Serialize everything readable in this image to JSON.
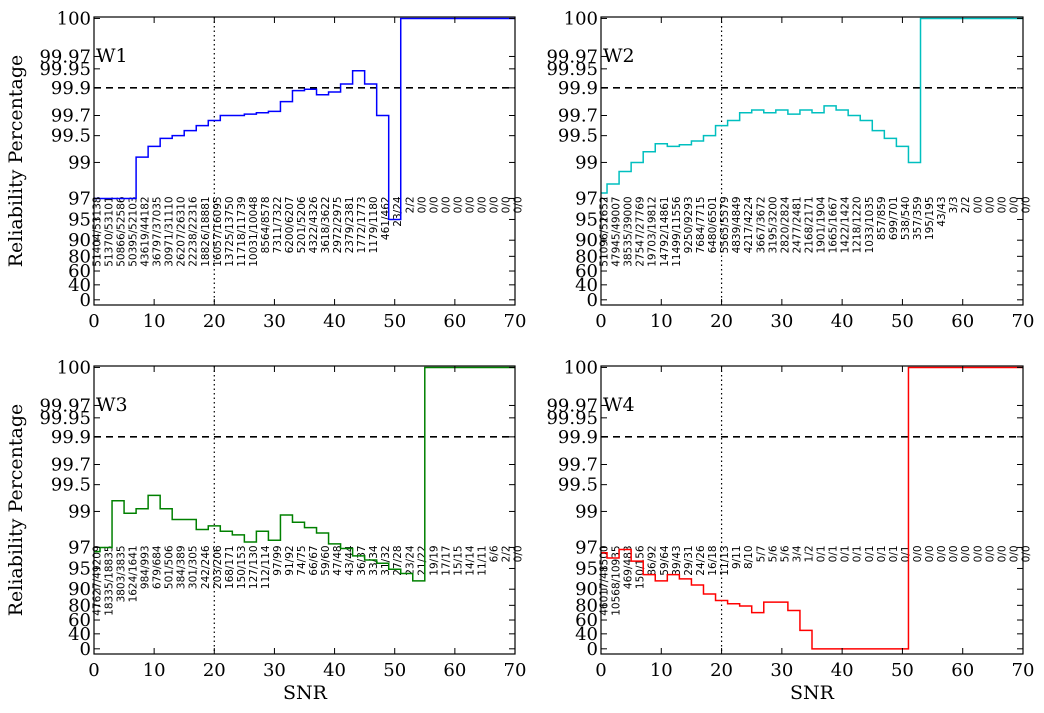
{
  "figure": {
    "ylabel": "Reliability Percentage",
    "xlabel": "SNR"
  },
  "chart_data": [
    {
      "type": "line",
      "panel": "W1",
      "color": "#0000ff",
      "xlabel": "",
      "ylabel": "Reliability Percentage",
      "xlim": [
        0,
        70
      ],
      "xticks": [
        0,
        10,
        20,
        30,
        40,
        50,
        60,
        70
      ],
      "yticks": [
        "0",
        "40",
        "60",
        "80",
        "90",
        "95",
        "97",
        "99",
        "99.5",
        "99.7",
        "99.9",
        "99.95",
        "99.97",
        "100"
      ],
      "reference_hline": 99.9,
      "reference_vline": 20,
      "x": [
        0,
        1,
        2,
        3,
        4,
        5,
        6,
        7,
        8,
        9,
        10,
        11,
        12,
        13,
        14,
        15,
        16,
        17,
        18,
        19,
        20,
        21,
        22,
        23,
        24,
        25,
        26,
        27,
        28,
        29,
        30,
        31,
        32,
        33,
        34,
        35,
        36,
        37,
        38,
        39,
        40,
        41,
        42,
        43,
        44,
        45,
        46,
        47,
        48,
        49,
        50,
        51,
        52,
        53,
        54,
        55,
        56,
        57,
        58,
        59,
        60,
        61,
        62,
        63,
        64,
        65,
        66,
        67,
        68,
        69,
        70
      ],
      "values": [
        97.0,
        97.0,
        97.0,
        97.0,
        97.0,
        97.0,
        97.0,
        99.1,
        99.1,
        99.3,
        99.3,
        99.45,
        99.45,
        99.5,
        99.5,
        99.55,
        99.55,
        99.6,
        99.6,
        99.65,
        99.65,
        99.7,
        99.7,
        99.7,
        99.7,
        99.71,
        99.71,
        99.72,
        99.72,
        99.73,
        99.73,
        99.8,
        99.8,
        99.88,
        99.88,
        99.89,
        99.89,
        99.85,
        99.85,
        99.87,
        99.87,
        99.91,
        99.91,
        99.945,
        99.945,
        99.91,
        99.91,
        99.7,
        99.7,
        95.0,
        95.0,
        100,
        100,
        100,
        100,
        100,
        100,
        100,
        100,
        100,
        100,
        100,
        100,
        100,
        100,
        100,
        100,
        100,
        100,
        100,
        100
      ],
      "ratio_labels": [
        "51404/53138",
        "51370/53101",
        "50866/52586",
        "50395/52103",
        "43619/44182",
        "36797/37035",
        "30971/31110",
        "26207/26310",
        "22238/22316",
        "18826/18881",
        "16057/16095",
        "13725/13750",
        "11718/11739",
        "10031/10048",
        "8564/8578",
        "7311/7322",
        "6200/6207",
        "5201/5206",
        "4322/4326",
        "3618/3622",
        "2972/2975",
        "2379/2381",
        "1772/1773",
        "1179/1180",
        "461/462",
        "23/24",
        "2/2",
        "0/0",
        "0/0",
        "0/0",
        "0/0",
        "0/0",
        "0/0",
        "0/0",
        "0/0",
        "0/0"
      ]
    },
    {
      "type": "line",
      "panel": "W2",
      "color": "#00bfbf",
      "xlabel": "",
      "ylabel": "",
      "xlim": [
        0,
        70
      ],
      "xticks": [
        0,
        10,
        20,
        30,
        40,
        50,
        60,
        70
      ],
      "yticks": [
        "0",
        "40",
        "60",
        "80",
        "90",
        "95",
        "97",
        "99",
        "99.5",
        "99.7",
        "99.9",
        "99.95",
        "99.97",
        "100"
      ],
      "reference_hline": 99.9,
      "reference_vline": 20,
      "x": [
        0,
        1,
        2,
        3,
        4,
        5,
        6,
        7,
        8,
        9,
        10,
        11,
        12,
        13,
        14,
        15,
        16,
        17,
        18,
        19,
        20,
        21,
        22,
        23,
        24,
        25,
        26,
        27,
        28,
        29,
        30,
        31,
        32,
        33,
        34,
        35,
        36,
        37,
        38,
        39,
        40,
        41,
        42,
        43,
        44,
        45,
        46,
        47,
        48,
        49,
        50,
        51,
        52,
        53,
        54,
        55,
        56,
        57,
        58,
        59,
        60,
        61,
        62,
        63,
        64,
        65,
        66,
        67,
        68,
        69,
        70
      ],
      "values": [
        97.3,
        97.8,
        97.8,
        98.5,
        98.5,
        99.0,
        99.0,
        99.2,
        99.2,
        99.35,
        99.35,
        99.3,
        99.3,
        99.33,
        99.33,
        99.4,
        99.4,
        99.5,
        99.5,
        99.6,
        99.6,
        99.65,
        99.65,
        99.72,
        99.72,
        99.74,
        99.74,
        99.72,
        99.72,
        99.74,
        99.74,
        99.71,
        99.71,
        99.74,
        99.74,
        99.72,
        99.72,
        99.77,
        99.77,
        99.74,
        99.74,
        99.7,
        99.7,
        99.65,
        99.65,
        99.55,
        99.55,
        99.45,
        99.45,
        99.3,
        99.3,
        99.0,
        99.0,
        100,
        100,
        100,
        100,
        100,
        100,
        100,
        100,
        100,
        100,
        100,
        100,
        100,
        100,
        100,
        100,
        100,
        100
      ],
      "ratio_labels": [
        "51096/52652",
        "47945/49007",
        "38535/39000",
        "27547/27769",
        "19703/19812",
        "14792/14861",
        "11499/11556",
        "9250/9293",
        "7684/7715",
        "6480/6501",
        "5565/5579",
        "4839/4849",
        "4217/4224",
        "3667/3672",
        "3195/3200",
        "2820/2824",
        "2477/2481",
        "2168/2171",
        "1901/1904",
        "1665/1667",
        "1422/1424",
        "1218/1220",
        "1033/1035",
        "857/859",
        "699/701",
        "538/540",
        "357/359",
        "195/195",
        "43/43",
        "3/3",
        "2/2",
        "0/0",
        "0/0",
        "0/0",
        "0/0",
        "0/0"
      ]
    },
    {
      "type": "line",
      "panel": "W3",
      "color": "#008000",
      "xlabel": "SNR",
      "ylabel": "Reliability Percentage",
      "xlim": [
        0,
        70
      ],
      "xticks": [
        0,
        10,
        20,
        30,
        40,
        50,
        60,
        70
      ],
      "yticks": [
        "0",
        "40",
        "60",
        "80",
        "90",
        "95",
        "97",
        "99",
        "99.5",
        "99.7",
        "99.9",
        "99.95",
        "99.97",
        "100"
      ],
      "reference_hline": 99.9,
      "reference_vline": 20,
      "x": [
        0,
        1,
        2,
        3,
        4,
        5,
        6,
        7,
        8,
        9,
        10,
        11,
        12,
        13,
        14,
        15,
        16,
        17,
        18,
        19,
        20,
        21,
        22,
        23,
        24,
        25,
        26,
        27,
        28,
        29,
        30,
        31,
        32,
        33,
        34,
        35,
        36,
        37,
        38,
        39,
        40,
        41,
        42,
        43,
        44,
        45,
        46,
        47,
        48,
        49,
        50,
        51,
        52,
        53,
        54,
        55,
        56,
        57,
        58,
        59,
        60,
        61,
        62,
        63,
        64,
        65,
        66,
        67,
        68,
        69,
        70
      ],
      "values": [
        96.6,
        97.0,
        97.0,
        99.2,
        99.2,
        98.9,
        98.9,
        99.05,
        99.05,
        99.3,
        99.3,
        99.05,
        99.05,
        98.55,
        98.55,
        98.55,
        98.55,
        98.0,
        98.0,
        98.2,
        98.2,
        97.9,
        97.9,
        97.7,
        97.7,
        97.3,
        97.3,
        97.9,
        97.9,
        97.4,
        97.4,
        98.8,
        98.8,
        98.4,
        98.4,
        98.1,
        98.1,
        97.8,
        97.8,
        97.2,
        97.2,
        96.9,
        96.9,
        96.2,
        96.2,
        95.8,
        95.8,
        95.5,
        95.5,
        94.8,
        94.8,
        93.8,
        93.8,
        92.0,
        92.0,
        100,
        100,
        100,
        100,
        100,
        100,
        100,
        100,
        100,
        100,
        100,
        100,
        100,
        100,
        100,
        100
      ],
      "ratio_labels": [
        "47627/49209",
        "18335/18835",
        "3803/3835",
        "1624/1641",
        "984/993",
        "679/684",
        "501/506",
        "384/389",
        "301/305",
        "242/246",
        "203/206",
        "168/171",
        "150/153",
        "127/130",
        "112/114",
        "97/99",
        "91/92",
        "74/75",
        "66/67",
        "59/60",
        "47/48",
        "43/44",
        "36/37",
        "33/34",
        "31/32",
        "27/28",
        "23/24",
        "21/22",
        "19/19",
        "17/17",
        "15/15",
        "14/14",
        "11/11",
        "6/6",
        "2/2",
        "0/0"
      ]
    },
    {
      "type": "line",
      "panel": "W4",
      "color": "#ff0000",
      "xlabel": "SNR",
      "ylabel": "",
      "xlim": [
        0,
        70
      ],
      "xticks": [
        0,
        10,
        20,
        30,
        40,
        50,
        60,
        70
      ],
      "yticks": [
        "0",
        "40",
        "60",
        "80",
        "90",
        "95",
        "97",
        "99",
        "99.5",
        "99.7",
        "99.9",
        "99.95",
        "99.97",
        "100"
      ],
      "reference_hline": 99.9,
      "reference_vline": 20,
      "x": [
        0,
        1,
        2,
        3,
        4,
        5,
        6,
        7,
        8,
        9,
        10,
        11,
        12,
        13,
        14,
        15,
        16,
        17,
        18,
        19,
        20,
        21,
        22,
        23,
        24,
        25,
        26,
        27,
        28,
        29,
        30,
        31,
        32,
        33,
        34,
        35,
        36,
        37,
        38,
        39,
        40,
        41,
        42,
        43,
        44,
        45,
        46,
        47,
        48,
        49,
        50,
        51,
        52,
        53,
        54,
        55,
        56,
        57,
        58,
        59,
        60,
        61,
        62,
        63,
        64,
        65,
        66,
        67,
        68,
        69,
        70
      ],
      "values": [
        96.5,
        96.0,
        96.0,
        96.8,
        96.8,
        95.7,
        95.7,
        93.5,
        93.5,
        92.0,
        92.0,
        93.5,
        93.5,
        92.5,
        92.5,
        91.0,
        91.0,
        87.0,
        87.0,
        83.0,
        83.0,
        81.0,
        81.0,
        79.0,
        79.0,
        70.0,
        70.0,
        82.0,
        82.0,
        82.0,
        82.0,
        73.0,
        73.0,
        45.0,
        45.0,
        0,
        0,
        0,
        0,
        0,
        0,
        0,
        0,
        0,
        0,
        0,
        0,
        0,
        0,
        0,
        0,
        100,
        100,
        100,
        100,
        100,
        100,
        100,
        100,
        100,
        100,
        100,
        100,
        100,
        100,
        100,
        100,
        100,
        100,
        100,
        100
      ],
      "ratio_labels": [
        "46017/48500",
        "10568/10935",
        "469/483",
        "150/156",
        "86/92",
        "59/64",
        "39/43",
        "29/31",
        "24/26",
        "16/18",
        "11/13",
        "9/11",
        "8/10",
        "5/7",
        "5/6",
        "5/6",
        "3/4",
        "1/2",
        "0/1",
        "0/1",
        "0/1",
        "0/1",
        "0/1",
        "0/1",
        "0/1",
        "0/1",
        "0/0",
        "0/0",
        "0/0",
        "0/0",
        "0/0",
        "0/0",
        "0/0",
        "0/0",
        "0/0",
        "0/0"
      ]
    }
  ]
}
